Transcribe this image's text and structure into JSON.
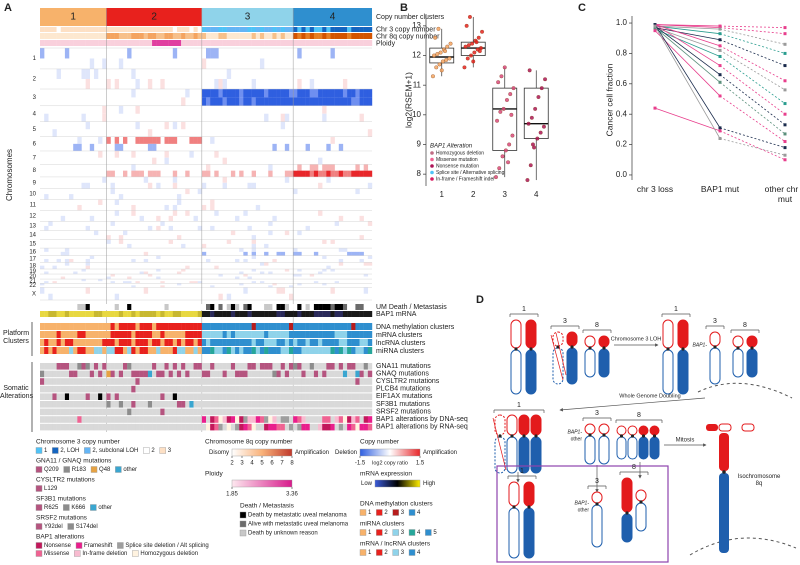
{
  "panel_a": {
    "label": "A",
    "cluster_header": [
      "1",
      "2",
      "3",
      "4"
    ],
    "cluster_colors": [
      "#f7b26b",
      "#e8211d",
      "#8fd3ea",
      "#2f8fcf"
    ],
    "track_labels": [
      "Copy number clusters",
      "Chr 3 copy number",
      "Chr 8q copy number",
      "Ploidy"
    ],
    "y_label": "Chromosomes",
    "chromosomes": [
      "1",
      "2",
      "3",
      "4",
      "5",
      "6",
      "7",
      "8",
      "9",
      "10",
      "11",
      "12",
      "13",
      "14",
      "15",
      "16",
      "17",
      "18",
      "19",
      "20",
      "21",
      "22",
      "X"
    ],
    "bottom_tracks": [
      "UM Death / Metastasis",
      "BAP1 mRNA"
    ],
    "platform_label": "Platform Clusters",
    "platform_tracks": [
      "DNA methylation clusters",
      "mRNA clusters",
      "lncRNA clusters",
      "miRNA clusters"
    ],
    "somatic_label": "Somatic Alterations",
    "somatic_tracks": [
      "GNA11 mutations",
      "GNAQ mutations",
      "CYSLTR2 mutations",
      "PLCB4 mutations",
      "EIF1AX mutations",
      "SF3B1 mutations",
      "SRSF2 mutations",
      "BAP1 alterations by DNA-seq",
      "BAP1 alterations by RNA-seq"
    ],
    "legend": {
      "chr3": {
        "title": "Chromosome 3 copy number",
        "items": [
          {
            "name": "1",
            "color": "#4fc3f7"
          },
          {
            "name": "2, LOH",
            "color": "#1565c0"
          },
          {
            "name": "2, subclonal LOH",
            "color": "#64b5f6"
          },
          {
            "name": "2",
            "color": "#ffffff"
          },
          {
            "name": "3",
            "color": "#fde0c5"
          }
        ]
      },
      "gnaq": {
        "title": "GNA11 / GNAQ mutations",
        "items": [
          {
            "name": "Q209",
            "color": "#b5547f"
          },
          {
            "name": "R183",
            "color": "#8d8d8d"
          },
          {
            "name": "Q48",
            "color": "#e6a243"
          },
          {
            "name": "other",
            "color": "#3aa6d0"
          }
        ]
      },
      "cysltr2": {
        "title": "CYSLTR2 mutations",
        "items": [
          {
            "name": "L129",
            "color": "#b5547f"
          }
        ]
      },
      "sf3b1": {
        "title": "SF3B1 mutations",
        "items": [
          {
            "name": "R625",
            "color": "#b5547f"
          },
          {
            "name": "K666",
            "color": "#8d8d8d"
          },
          {
            "name": "other",
            "color": "#3aa6d0"
          }
        ]
      },
      "srsf2": {
        "title": "SRSF2 mutations",
        "items": [
          {
            "name": "Y92del",
            "color": "#b5547f"
          },
          {
            "name": "S174del",
            "color": "#8d8d8d"
          }
        ]
      },
      "bap1": {
        "title": "BAP1 alterations",
        "items": [
          {
            "name": "Nonsense",
            "color": "#c2185b"
          },
          {
            "name": "Frameshift",
            "color": "#e91e8c"
          },
          {
            "name": "Splice site deletion / Alt splicing",
            "color": "#9e9e9e"
          },
          {
            "name": "Missense",
            "color": "#f06292"
          },
          {
            "name": "In-frame deletion",
            "color": "#f8bbd0"
          },
          {
            "name": "Homozygous deletion",
            "color": "#fff3e0"
          }
        ]
      },
      "chr8q": {
        "title": "Chromosome 8q copy number",
        "low": "Disomy",
        "high": "Amplification",
        "ticks": [
          2,
          3,
          4,
          5,
          6,
          7,
          8
        ]
      },
      "ploidy": {
        "title": "Ploidy",
        "ticks": [
          1.85,
          3.36
        ]
      },
      "copy": {
        "title": "Copy number",
        "low": "Deletion",
        "high": "Amplification",
        "ticks": [
          -1.5,
          1.5
        ],
        "axis": "log2 copy ratio"
      },
      "mrna": {
        "title": "mRNA expression",
        "low": "Low",
        "high": "High"
      },
      "death": {
        "title": "Death / Metastasis",
        "items": [
          {
            "name": "Death by metastatic uveal melanoma",
            "color": "#000000"
          },
          {
            "name": "Alive with metastatic uveal melanoma",
            "color": "#6b6b6b"
          },
          {
            "name": "Death by unknown reason",
            "color": "#c8c8c8"
          }
        ]
      },
      "meth": {
        "title": "DNA methylation clusters",
        "items": [
          {
            "name": "1",
            "color": "#f7b26b"
          },
          {
            "name": "2",
            "color": "#e8211d"
          },
          {
            "name": "3",
            "color": "#b71c1c"
          },
          {
            "name": "4",
            "color": "#2f8fcf"
          }
        ]
      },
      "mirna": {
        "title": "miRNA clusters",
        "items": [
          {
            "name": "1",
            "color": "#f7b26b"
          },
          {
            "name": "2",
            "color": "#e8211d"
          },
          {
            "name": "3",
            "color": "#8fd3ea"
          },
          {
            "name": "4",
            "color": "#26a69a"
          },
          {
            "name": "5",
            "color": "#2f8fcf"
          }
        ]
      },
      "mrna_lnc": {
        "title": "mRNA / lncRNA clusters",
        "items": [
          {
            "name": "1",
            "color": "#f7b26b"
          },
          {
            "name": "2",
            "color": "#e8211d"
          },
          {
            "name": "3",
            "color": "#8fd3ea"
          },
          {
            "name": "4",
            "color": "#2f8fcf"
          }
        ]
      }
    }
  },
  "chart_data": [
    {
      "type": "box",
      "label": "B",
      "y_label": "log2(RSEM+1)",
      "categories": [
        "1",
        "2",
        "3",
        "4"
      ],
      "ylim": [
        7.6,
        13.4
      ],
      "yticks": [
        8,
        9,
        10,
        11,
        12,
        13
      ],
      "boxes": [
        {
          "low": 11.3,
          "q1": 11.75,
          "median": 11.95,
          "q3": 12.25,
          "high": 12.9
        },
        {
          "low": 11.6,
          "q1": 12.0,
          "median": 12.25,
          "q3": 12.45,
          "high": 13.3
        },
        {
          "low": 7.9,
          "q1": 8.8,
          "median": 10.2,
          "q3": 10.9,
          "high": 11.6
        },
        {
          "low": 7.8,
          "q1": 9.2,
          "median": 9.7,
          "q3": 10.9,
          "high": 11.5
        }
      ],
      "points": [
        {
          "color": "#f4a460",
          "values": [
            11.3,
            11.6,
            11.7,
            11.8,
            11.85,
            11.9,
            12.0,
            12.05,
            12.1,
            12.2,
            12.3,
            12.4,
            12.6,
            12.9,
            11.5,
            12.15
          ]
        },
        {
          "color": "#e8211d",
          "values": [
            11.6,
            11.9,
            12.0,
            12.1,
            12.2,
            12.25,
            12.3,
            12.35,
            12.4,
            12.5,
            12.6,
            12.8,
            13.0,
            13.3,
            11.8,
            12.45,
            12.15
          ]
        },
        {
          "color": "#d9467d",
          "values": [
            7.9,
            8.2,
            8.6,
            8.8,
            9.0,
            9.3,
            9.8,
            10.1,
            10.2,
            10.5,
            10.7,
            10.9,
            11.1,
            11.3,
            11.6,
            8.4,
            10.0
          ]
        },
        {
          "color": "#ad1457",
          "values": [
            7.8,
            8.3,
            8.9,
            9.2,
            9.4,
            9.6,
            9.7,
            9.9,
            10.2,
            10.6,
            10.9,
            11.2,
            11.5,
            9.0
          ]
        }
      ],
      "legend_title": "BAP1 Alteration",
      "legend": [
        {
          "name": "Homozygous deletion",
          "color": "#c06c84"
        },
        {
          "name": "Missense mutation",
          "color": "#f06292"
        },
        {
          "name": "Nonsense mutation",
          "color": "#ad1457"
        },
        {
          "name": "Splice site / Alternative splicing",
          "color": "#4fc3f7"
        },
        {
          "name": "In-frame / Frameshift indel",
          "color": "#d81b60"
        }
      ]
    },
    {
      "type": "line",
      "label": "C",
      "y_label": "Cancer cell fraction",
      "categories": [
        "chr 3 loss",
        "BAP1 mut",
        "other chr 3 mut"
      ],
      "ylim": [
        -0.02,
        1.02
      ],
      "yticks": [
        {
          "value": 0,
          "label": "0.0"
        },
        0.2,
        0.4,
        0.6,
        0.8,
        {
          "value": 1,
          "label": "1.0"
        }
      ],
      "series": [
        {
          "color": "#e83e8c",
          "values": [
            0.99,
            0.98,
            0.97
          ]
        },
        {
          "color": "#e83e8c",
          "values": [
            0.99,
            0.97,
            0.93
          ]
        },
        {
          "color": "#9a9a9a",
          "values": [
            0.98,
            0.96,
            0.86
          ]
        },
        {
          "color": "#2a9d8f",
          "values": [
            0.98,
            0.93,
            0.8
          ]
        },
        {
          "color": "#1a2b4c",
          "values": [
            0.97,
            0.89,
            0.72
          ]
        },
        {
          "color": "#e83e8c",
          "values": [
            0.99,
            0.85,
            0.62
          ]
        },
        {
          "color": "#9a9a9a",
          "values": [
            0.97,
            0.82,
            0.56
          ]
        },
        {
          "color": "#2a9d8f",
          "values": [
            0.96,
            0.78,
            0.47
          ]
        },
        {
          "color": "#e83e8c",
          "values": [
            0.99,
            0.72,
            0.4
          ]
        },
        {
          "color": "#1a2b4c",
          "values": [
            0.98,
            0.66,
            0.33
          ]
        },
        {
          "color": "#5a8f7b",
          "values": [
            0.97,
            0.61,
            0.27
          ]
        },
        {
          "color": "#e83e8c",
          "values": [
            0.95,
            0.52,
            0.22
          ]
        },
        {
          "color": "#1a2b4c",
          "values": [
            0.99,
            0.31,
            0.18
          ]
        },
        {
          "color": "#e83e8c",
          "values": [
            0.44,
            0.29,
            0.1
          ]
        },
        {
          "color": "#9a9a9a",
          "values": [
            0.98,
            0.24,
            0.13
          ]
        }
      ]
    }
  ],
  "panel_d": {
    "label": "D",
    "chrom_labels": [
      "1",
      "3",
      "8"
    ],
    "step1": "Chromosome 3 LOH",
    "bap1": "BAP1-",
    "other": "other",
    "step2": "Whole Genome Doubling",
    "mitosis": "Mitosis",
    "iso": "Isochromosome 8q"
  }
}
